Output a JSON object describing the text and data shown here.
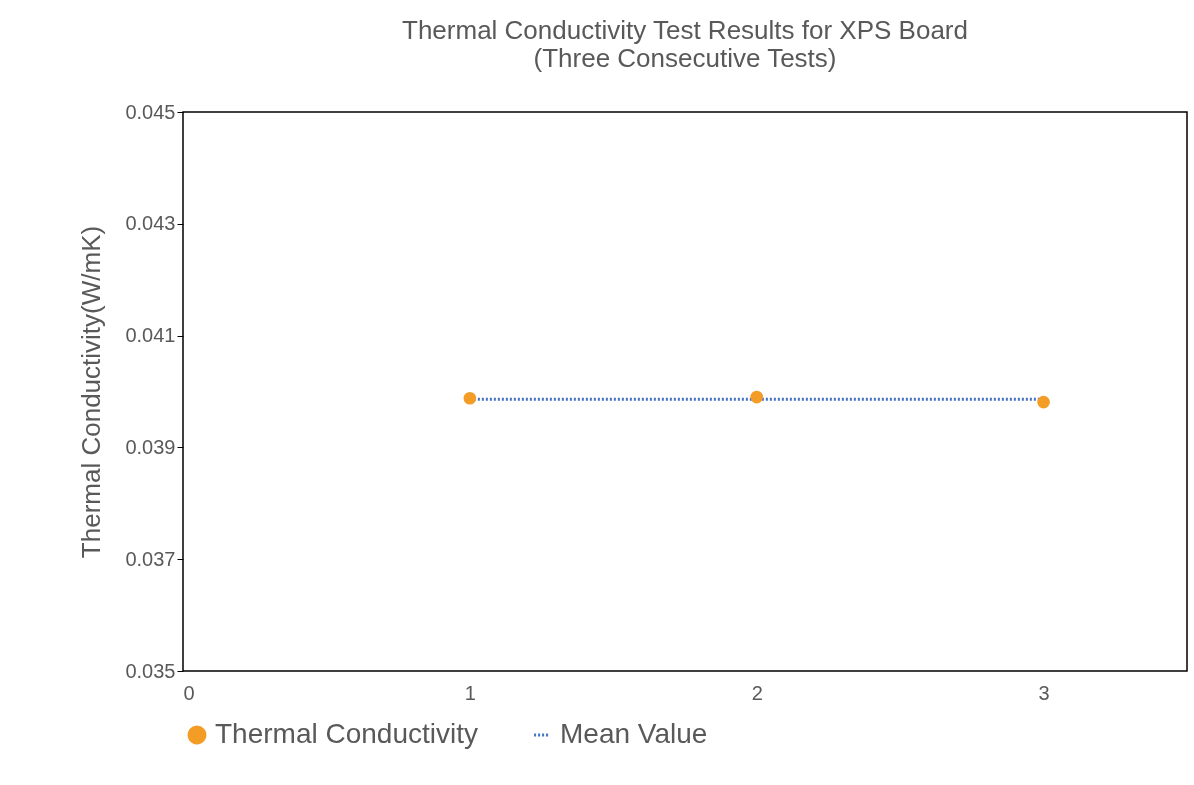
{
  "chart_data": {
    "type": "scatter",
    "title": "Thermal Conductivity Test Results for XPS Board\n(Three Consecutive Tests)",
    "ylabel": "Thermal Conductivity(W/mK)",
    "xlim": [
      0,
      3.5
    ],
    "xticks": [
      0,
      1,
      2,
      3
    ],
    "ylim": [
      0.035,
      0.045
    ],
    "yticks": [
      0.035,
      0.037,
      0.039,
      0.041,
      0.043,
      0.045
    ],
    "grid": false,
    "legend": "bottom",
    "series": [
      {
        "name": "Thermal Conductivity",
        "marker": "circle",
        "color": "#f39c26",
        "x": [
          1,
          2,
          3
        ],
        "values": [
          0.03988,
          0.0399,
          0.03981
        ]
      },
      {
        "name": "Mean Value",
        "type": "line",
        "line_style": "dotted",
        "marker": "none",
        "color": "#4472c4",
        "x": [
          1,
          2,
          3
        ],
        "values": [
          0.03986,
          0.03986,
          0.03986
        ]
      }
    ]
  }
}
